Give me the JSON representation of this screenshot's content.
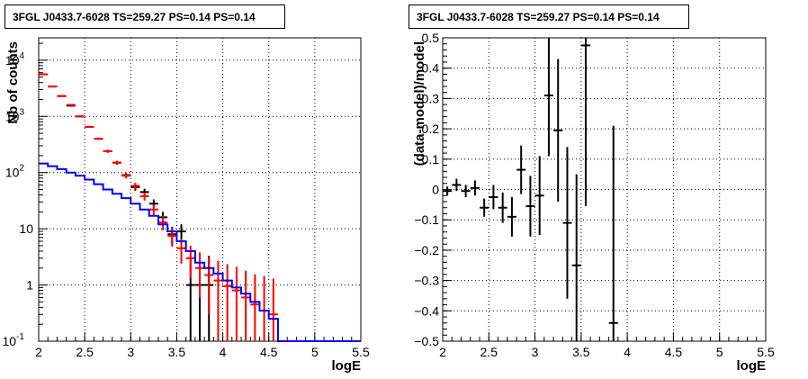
{
  "chart_data": [
    {
      "type": "histogram",
      "title": "3FGL J0433.7-6028 TS=259.27 PS=0.14 PS=0.14",
      "xlabel": "logE",
      "ylabel": "Nb of counts",
      "xlim": [
        2,
        5.5
      ],
      "ylim": [
        0.1,
        25000
      ],
      "yscale": "log",
      "grid": true,
      "x_ticks": [
        "2",
        "2.5",
        "3",
        "3.5",
        "4",
        "4.5",
        "5",
        "5.5"
      ],
      "y_ticks": [
        "10^{-1}",
        "1",
        "10",
        "10^{2}",
        "10^{3}",
        "10^{4}"
      ],
      "series": [
        {
          "color": "#000000",
          "style": "points with error bars",
          "x": [
            2.05,
            2.15,
            2.25,
            2.35,
            2.45,
            2.55,
            2.65,
            2.75,
            2.85,
            2.95,
            3.05,
            3.15,
            3.25,
            3.35,
            3.45,
            3.55,
            3.65,
            3.75,
            3.85
          ],
          "y": [
            5600,
            3400,
            2300,
            1550,
            1000,
            650,
            400,
            240,
            150,
            90,
            55,
            45,
            28,
            16,
            8,
            9,
            1,
            1,
            1
          ],
          "yerr_low": [
            75,
            58,
            48,
            39,
            32,
            25,
            20,
            15,
            12,
            9.5,
            7.4,
            6.7,
            5.3,
            4,
            2.8,
            3,
            0.9,
            0.9,
            0.9
          ],
          "yerr_high": [
            75,
            58,
            48,
            39,
            32,
            25,
            20,
            15,
            12,
            9.5,
            7.4,
            6.7,
            5.3,
            4,
            2.8,
            3,
            2.3,
            2.3,
            2.3
          ]
        },
        {
          "color": "#ff0000",
          "style": "points with error bars",
          "x": [
            2.05,
            2.15,
            2.25,
            2.35,
            2.45,
            2.55,
            2.65,
            2.75,
            2.85,
            2.95,
            3.05,
            3.15,
            3.25,
            3.35,
            3.45,
            3.55,
            3.65,
            3.75,
            3.85,
            3.95,
            4.05,
            4.15,
            4.25,
            4.35,
            4.45,
            4.55
          ],
          "y": [
            5600,
            3400,
            2300,
            1600,
            1000,
            650,
            400,
            240,
            150,
            88,
            58,
            38,
            22,
            13,
            7.5,
            4.5,
            3,
            2,
            1.5,
            1.2,
            0.95,
            0.8,
            0.6,
            0.45,
            0.35,
            0.3
          ],
          "yerr_low": [
            75,
            58,
            48,
            40,
            32,
            25,
            20,
            15,
            12,
            9.4,
            7.6,
            6.2,
            4.7,
            3.6,
            2.7,
            2.1,
            1.7,
            1.4,
            1.2,
            1.1,
            0.85,
            0.7,
            0.52,
            0.38,
            0.28,
            0.22
          ],
          "yerr_high": [
            75,
            58,
            48,
            40,
            32,
            25,
            20,
            15,
            12,
            9.4,
            7.6,
            6.2,
            4.7,
            3.6,
            2.7,
            2.1,
            2,
            1.8,
            1.6,
            1.5,
            1.4,
            1.3,
            1.2,
            1.1,
            1.1,
            1.0
          ]
        },
        {
          "color": "#0000ff",
          "style": "step histogram",
          "edges": [
            2.0,
            2.1,
            2.2,
            2.3,
            2.4,
            2.5,
            2.6,
            2.7,
            2.8,
            2.9,
            3.0,
            3.1,
            3.2,
            3.3,
            3.4,
            3.5,
            3.6,
            3.7,
            3.8,
            3.9,
            4.0,
            4.1,
            4.2,
            4.3,
            4.4,
            4.5,
            4.6,
            5.5
          ],
          "values": [
            145,
            130,
            115,
            100,
            88,
            75,
            62,
            50,
            42,
            35,
            28,
            22,
            17,
            12,
            9,
            6,
            4,
            2.5,
            2,
            1.6,
            1.2,
            0.9,
            0.7,
            0.5,
            0.35,
            0.25,
            0.1
          ]
        }
      ]
    },
    {
      "type": "scatter",
      "title": "3FGL J0433.7-6028 TS=259.27 PS=0.14 PS=0.14",
      "xlabel": "logE",
      "ylabel": "(data-model)/model",
      "xlim": [
        2,
        5.5
      ],
      "ylim": [
        -0.5,
        0.5
      ],
      "grid": true,
      "x_ticks": [
        "2",
        "2.5",
        "3",
        "3.5",
        "4",
        "4.5",
        "5",
        "5.5"
      ],
      "y_ticks": [
        "-0.5",
        "-0.4",
        "-0.3",
        "-0.2",
        "-0.1",
        "0",
        "0.1",
        "0.2",
        "0.3",
        "0.4",
        "0.5"
      ],
      "series": [
        {
          "color": "#000000",
          "style": "points with error bars",
          "x": [
            2.05,
            2.15,
            2.25,
            2.35,
            2.45,
            2.55,
            2.65,
            2.75,
            2.85,
            2.95,
            3.05,
            3.15,
            3.25,
            3.35,
            3.45,
            3.55,
            3.85
          ],
          "y": [
            -0.005,
            0.015,
            -0.005,
            0.005,
            -0.06,
            -0.025,
            -0.06,
            -0.09,
            0.065,
            -0.055,
            -0.02,
            0.31,
            0.195,
            -0.11,
            -0.25,
            0.475,
            -0.44
          ],
          "yerr": [
            0.015,
            0.02,
            0.02,
            0.025,
            0.03,
            0.04,
            0.05,
            0.065,
            0.08,
            0.1,
            0.13,
            0.2,
            0.235,
            0.25,
            0.3,
            0.53,
            0.65
          ]
        }
      ]
    }
  ]
}
